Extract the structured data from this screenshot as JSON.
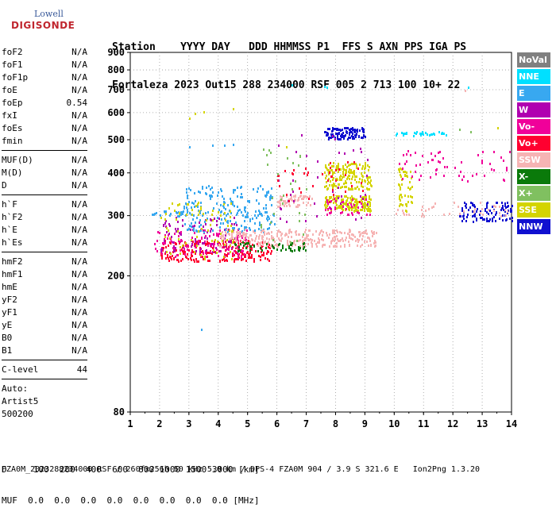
{
  "logo": {
    "brand": "Lowell",
    "name": "DIGISONDE"
  },
  "header": {
    "line1": "Station    YYYY DAY   DDD HHMMSS P1  FFS S AXN PPS IGA PS",
    "line2": "Fortaleza 2023 Out15 288 234000 RSF 005 2 713 100 10+ 22"
  },
  "params": {
    "group1": [
      {
        "label": "foF2",
        "value": "N/A"
      },
      {
        "label": "foF1",
        "value": "N/A"
      },
      {
        "label": "foF1p",
        "value": "N/A"
      },
      {
        "label": "foE",
        "value": "N/A"
      },
      {
        "label": "foEp",
        "value": "0.54"
      },
      {
        "label": "fxI",
        "value": "N/A"
      },
      {
        "label": "foEs",
        "value": "N/A"
      },
      {
        "label": "fmin",
        "value": "N/A"
      }
    ],
    "group2": [
      {
        "label": "MUF(D)",
        "value": "N/A"
      },
      {
        "label": "M(D)",
        "value": "N/A"
      },
      {
        "label": "D",
        "value": "N/A"
      }
    ],
    "group3": [
      {
        "label": "h`F",
        "value": "N/A"
      },
      {
        "label": "h`F2",
        "value": "N/A"
      },
      {
        "label": "h`E",
        "value": "N/A"
      },
      {
        "label": "h`Es",
        "value": "N/A"
      }
    ],
    "group4": [
      {
        "label": "hmF2",
        "value": "N/A"
      },
      {
        "label": "hmF1",
        "value": "N/A"
      },
      {
        "label": "hmE",
        "value": "N/A"
      },
      {
        "label": "yF2",
        "value": "N/A"
      },
      {
        "label": "yF1",
        "value": "N/A"
      },
      {
        "label": "yE",
        "value": "N/A"
      },
      {
        "label": "B0",
        "value": "N/A"
      },
      {
        "label": "B1",
        "value": "N/A"
      }
    ],
    "clevel": {
      "label": "C-level",
      "value": "44"
    },
    "auto": [
      "Auto:",
      "Artist5",
      "500200"
    ]
  },
  "legend": [
    {
      "label": "NoVal",
      "color": "#808080"
    },
    {
      "label": "NNE",
      "color": "#00e0ff"
    },
    {
      "label": "E",
      "color": "#38a8f0"
    },
    {
      "label": "W",
      "color": "#b000b0"
    },
    {
      "label": "Vo-",
      "color": "#f0009a"
    },
    {
      "label": "Vo+",
      "color": "#ff0030"
    },
    {
      "label": "SSW",
      "color": "#f6b4b4"
    },
    {
      "label": "X-",
      "color": "#0a7a0a"
    },
    {
      "label": "X+",
      "color": "#80c060"
    },
    {
      "label": "SSE",
      "color": "#d4d400"
    },
    {
      "label": "NNW",
      "color": "#1010d0"
    }
  ],
  "chart_data": {
    "type": "scatter",
    "title": "",
    "xlabel": "",
    "ylabel": "",
    "xlim": [
      1,
      14
    ],
    "ylim": [
      80,
      900
    ],
    "yscale": "log",
    "x_ticks": [
      "1",
      "2",
      "3",
      "4",
      "5",
      "6",
      "7",
      "8",
      "9",
      "10",
      "11",
      "12",
      "13",
      "14"
    ],
    "y_ticks": [
      {
        "v": 80,
        "label": "80"
      },
      {
        "v": 200,
        "label": "200"
      },
      {
        "v": 300,
        "label": "300"
      },
      {
        "v": 400,
        "label": "400"
      },
      {
        "v": 500,
        "label": "500"
      },
      {
        "v": 600,
        "label": "600"
      },
      {
        "v": 700,
        "label": "700"
      },
      {
        "v": 800,
        "label": "800"
      },
      {
        "v": 900,
        "label": "900"
      }
    ],
    "grid": true,
    "legend_position": "right",
    "clusters": [
      {
        "color": "#ff0030",
        "x": [
          2.0,
          5.8
        ],
        "y": [
          222,
          255
        ],
        "n": 260
      },
      {
        "color": "#f0009a",
        "x": [
          1.8,
          5.0
        ],
        "y": [
          228,
          275
        ],
        "n": 120
      },
      {
        "color": "#b000b0",
        "x": [
          2.0,
          4.6
        ],
        "y": [
          235,
          300
        ],
        "n": 90
      },
      {
        "color": "#38a8f0",
        "x": [
          2.8,
          5.9
        ],
        "y": [
          270,
          370
        ],
        "n": 220
      },
      {
        "color": "#38a8f0",
        "x": [
          1.7,
          3.0
        ],
        "y": [
          300,
          312
        ],
        "n": 25
      },
      {
        "color": "#f6b4b4",
        "x": [
          4.0,
          9.4
        ],
        "y": [
          245,
          275
        ],
        "n": 320
      },
      {
        "color": "#f6b4b4",
        "x": [
          6.0,
          7.2
        ],
        "y": [
          320,
          345
        ],
        "n": 60
      },
      {
        "color": "#0a7a0a",
        "x": [
          4.5,
          7.0
        ],
        "y": [
          238,
          252
        ],
        "n": 50
      },
      {
        "color": "#d4d400",
        "x": [
          2.0,
          4.5
        ],
        "y": [
          225,
          330
        ],
        "n": 80
      },
      {
        "color": "#d4d400",
        "x": [
          7.6,
          9.2
        ],
        "y": [
          310,
          345
        ],
        "n": 160
      },
      {
        "color": "#d4d400",
        "x": [
          7.6,
          9.2
        ],
        "y": [
          360,
          430
        ],
        "n": 160
      },
      {
        "color": "#d4d400",
        "x": [
          10.1,
          10.6
        ],
        "y": [
          310,
          420
        ],
        "n": 50
      },
      {
        "color": "#1010d0",
        "x": [
          7.6,
          9.0
        ],
        "y": [
          505,
          545
        ],
        "n": 110
      },
      {
        "color": "#1010d0",
        "x": [
          12.2,
          14.0
        ],
        "y": [
          290,
          330
        ],
        "n": 100
      },
      {
        "color": "#00e0ff",
        "x": [
          10.0,
          11.8
        ],
        "y": [
          515,
          530
        ],
        "n": 30
      },
      {
        "color": "#f0009a",
        "x": [
          10.1,
          14.0
        ],
        "y": [
          380,
          470
        ],
        "n": 60
      },
      {
        "color": "#f0009a",
        "x": [
          7.6,
          9.2
        ],
        "y": [
          300,
          340
        ],
        "n": 40
      },
      {
        "color": "#b000b0",
        "x": [
          6.0,
          9.1
        ],
        "y": [
          290,
          520
        ],
        "n": 40
      },
      {
        "color": "#ff0030",
        "x": [
          6.0,
          9.0
        ],
        "y": [
          325,
          440
        ],
        "n": 40
      },
      {
        "color": "#80c060",
        "x": [
          5.4,
          7.0
        ],
        "y": [
          250,
          480
        ],
        "n": 30
      },
      {
        "color": "#f6b4b4",
        "x": [
          10.0,
          14.0
        ],
        "y": [
          300,
          330
        ],
        "n": 40
      }
    ],
    "points": [
      {
        "x": 3.0,
        "y": 580,
        "color": "#d4d400"
      },
      {
        "x": 3.2,
        "y": 600,
        "color": "#d4d400"
      },
      {
        "x": 3.5,
        "y": 605,
        "color": "#d4d400"
      },
      {
        "x": 4.5,
        "y": 620,
        "color": "#d4d400"
      },
      {
        "x": 3.0,
        "y": 480,
        "color": "#38a8f0"
      },
      {
        "x": 3.8,
        "y": 485,
        "color": "#38a8f0"
      },
      {
        "x": 4.2,
        "y": 485,
        "color": "#38a8f0"
      },
      {
        "x": 4.5,
        "y": 487,
        "color": "#38a8f0"
      },
      {
        "x": 6.5,
        "y": 725,
        "color": "#00e0ff"
      },
      {
        "x": 7.6,
        "y": 720,
        "color": "#00e0ff"
      },
      {
        "x": 7.7,
        "y": 715,
        "color": "#00e0ff"
      },
      {
        "x": 12.5,
        "y": 715,
        "color": "#00e0ff"
      },
      {
        "x": 12.4,
        "y": 700,
        "color": "#f6b4b4"
      },
      {
        "x": 3.4,
        "y": 140,
        "color": "#38a8f0"
      },
      {
        "x": 12.2,
        "y": 540,
        "color": "#80c060"
      },
      {
        "x": 12.6,
        "y": 530,
        "color": "#80c060"
      },
      {
        "x": 13.5,
        "y": 545,
        "color": "#d4d400"
      },
      {
        "x": 6.3,
        "y": 480,
        "color": "#d4d400"
      }
    ]
  }
}
